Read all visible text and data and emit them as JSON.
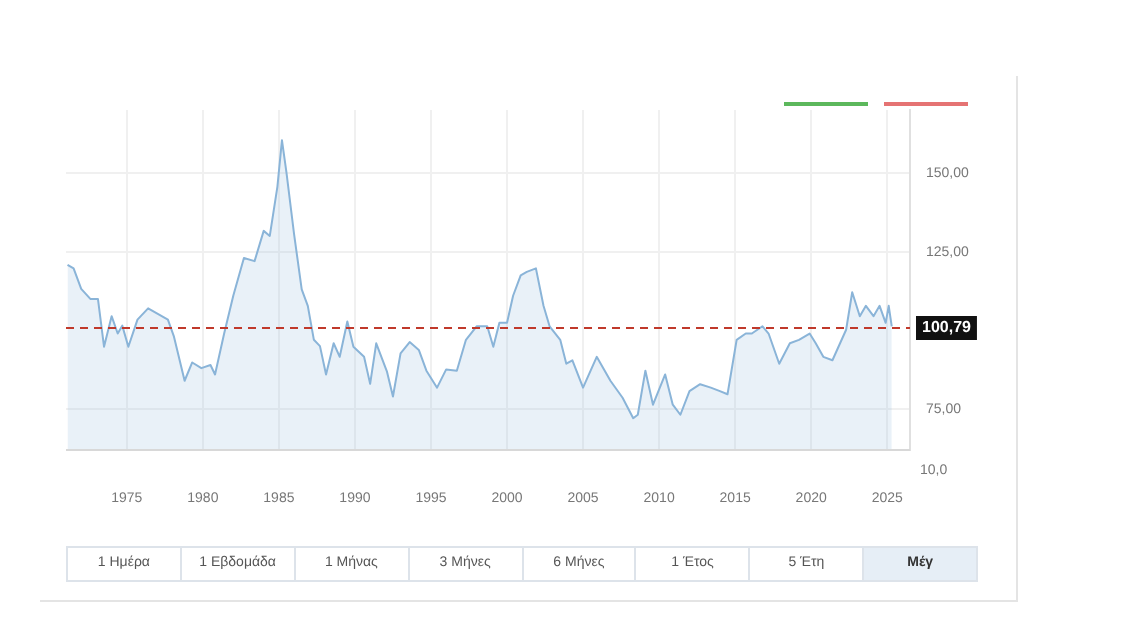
{
  "chart_data": {
    "type": "area",
    "x": [
      1971.1,
      1971.5,
      1972.0,
      1972.6,
      1973.1,
      1973.5,
      1974.0,
      1974.4,
      1974.7,
      1975.1,
      1975.7,
      1976.4,
      1977.7,
      1978.1,
      1978.8,
      1979.3,
      1979.9,
      1980.5,
      1980.8,
      1981.4,
      1982.0,
      1982.7,
      1983.4,
      1984.0,
      1984.4,
      1984.9,
      1985.2,
      1985.5,
      1986.0,
      1986.5,
      1986.9,
      1987.3,
      1987.7,
      1988.1,
      1988.6,
      1989.0,
      1989.5,
      1989.9,
      1990.6,
      1991.0,
      1991.4,
      1992.1,
      1992.5,
      1993.0,
      1993.6,
      1994.2,
      1994.7,
      1995.4,
      1996.0,
      1996.7,
      1997.3,
      1998.0,
      1998.7,
      1999.1,
      1999.5,
      2000.0,
      2000.4,
      2000.9,
      2001.3,
      2001.9,
      2002.4,
      2002.8,
      2003.5,
      2003.9,
      2004.3,
      2005.0,
      2005.9,
      2006.8,
      2007.6,
      2008.3,
      2008.6,
      2009.1,
      2009.6,
      2010.4,
      2010.9,
      2011.4,
      2012.0,
      2012.7,
      2013.4,
      2014.0,
      2014.5,
      2015.1,
      2015.7,
      2016.1,
      2016.8,
      2017.2,
      2017.9,
      2018.6,
      2019.2,
      2019.9,
      2020.3,
      2020.8,
      2021.4,
      2022.3,
      2022.7,
      2023.2,
      2023.6,
      2024.1,
      2024.5,
      2024.9,
      2025.1,
      2025.3
    ],
    "values": [
      120.8,
      119.7,
      113.2,
      110,
      110,
      94.8,
      104.5,
      99,
      101.5,
      94.8,
      103.4,
      107,
      103.4,
      98,
      84,
      89.8,
      88,
      89,
      86,
      99,
      111,
      123,
      122,
      131.6,
      130,
      145.6,
      160.4,
      150,
      130.5,
      113,
      107.8,
      97,
      95,
      86,
      95.9,
      91.6,
      102.8,
      94.8,
      91.6,
      83,
      95.9,
      87,
      79,
      92.7,
      96.3,
      93.8,
      87.2,
      81.8,
      87.6,
      87.2,
      97,
      101.3,
      101.3,
      94.8,
      102.4,
      102.4,
      111,
      117.5,
      118.6,
      119.7,
      107.8,
      101.3,
      97,
      89.4,
      90.5,
      81.8,
      91.6,
      84,
      78.6,
      72.1,
      73.2,
      87.2,
      76.4,
      86,
      76.4,
      73.2,
      80.7,
      82.9,
      81.8,
      80.7,
      79.7,
      97,
      99,
      99,
      101.3,
      99,
      89.4,
      95.9,
      97,
      99,
      95.9,
      91.6,
      90.5,
      100.2,
      112.1,
      104.5,
      107.8,
      104.5,
      107.8,
      102.4,
      107.8,
      101.3
    ],
    "color": "#8ab4d8",
    "xlim": [
      1971,
      2026.5
    ],
    "xticks": [
      1975,
      1980,
      1985,
      1990,
      1995,
      2000,
      2005,
      2010,
      2015,
      2020,
      2025
    ],
    "ylim": [
      62,
      170
    ],
    "yticks": [
      {
        "value": 75,
        "label": "75,00"
      },
      {
        "value": 125,
        "label": "125,00"
      },
      {
        "value": 150,
        "label": "150,00"
      }
    ],
    "ref_lines": [
      {
        "axis": "y",
        "value": 100.79,
        "label": "100,79",
        "color": "#c0392b",
        "line_style": "dashed"
      }
    ],
    "grid": true,
    "annotations": [
      "10,0",
      "1 Ημέρα",
      "1 Εβδομάδα",
      "1 Μήνας",
      "3 Μήνες",
      "6 Μήνες",
      "1 Έτος",
      "5 Έτη",
      "Μέγ"
    ]
  }
}
